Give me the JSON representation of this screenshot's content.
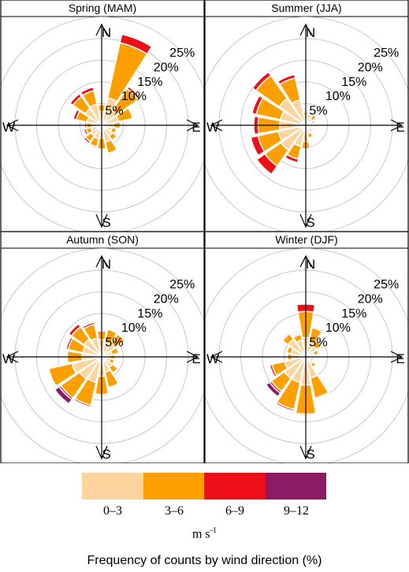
{
  "chart_data": {
    "type": "windrose",
    "axis_max": 25,
    "ring_labels": [
      "5%",
      "10%",
      "15%",
      "20%",
      "25%"
    ],
    "ring_values": [
      5,
      10,
      15,
      20,
      25
    ],
    "directions": [
      "N",
      "NNE",
      "NE",
      "ENE",
      "E",
      "ESE",
      "SE",
      "SSE",
      "S",
      "SSW",
      "SW",
      "WSW",
      "W",
      "WNW",
      "NW",
      "NNW"
    ],
    "cardinal_labels": {
      "N": "N",
      "E": "E",
      "S": "S",
      "W": "W"
    },
    "speed_bins": [
      {
        "label": "0–3",
        "color": "#fdd49e"
      },
      {
        "label": "3–6",
        "color": "#fe9f00"
      },
      {
        "label": "6–9",
        "color": "#ee0f18"
      },
      {
        "label": "9–12",
        "color": "#8a1c64"
      }
    ],
    "panels": [
      {
        "title": "Spring (MAM)",
        "segments": [
          [
            3.2,
            1.5,
            0,
            0
          ],
          [
            6.5,
            13.0,
            2.0,
            0
          ],
          [
            4.3,
            6.0,
            0.6,
            0
          ],
          [
            4.0,
            3.3,
            0,
            0
          ],
          [
            2.8,
            1.5,
            0,
            0
          ],
          [
            2.5,
            1.0,
            0,
            0
          ],
          [
            3.0,
            1.2,
            0,
            0
          ],
          [
            4.0,
            2.6,
            0,
            0
          ],
          [
            3.0,
            2.5,
            0,
            0
          ],
          [
            3.2,
            1.9,
            0.3,
            0
          ],
          [
            3.0,
            1.6,
            0.5,
            0
          ],
          [
            2.5,
            1.2,
            0.5,
            0
          ],
          [
            2.2,
            1.3,
            0.4,
            0
          ],
          [
            3.5,
            2.5,
            0.7,
            0
          ],
          [
            4.7,
            3.4,
            0.8,
            0
          ],
          [
            5.0,
            3.2,
            0.8,
            0
          ]
        ]
      },
      {
        "title": "Summer (JJA)",
        "segments": [
          [
            2.4,
            0.6,
            0,
            0
          ],
          [
            2.0,
            0.5,
            0,
            0
          ],
          [
            1.8,
            1.2,
            0,
            0
          ],
          [
            1.6,
            0.5,
            0,
            0
          ],
          [
            0.8,
            0.3,
            0,
            0
          ],
          [
            0.8,
            0.3,
            0,
            0
          ],
          [
            1.2,
            0.6,
            0,
            0
          ],
          [
            2.0,
            1.0,
            0,
            0
          ],
          [
            3.8,
            1.6,
            0,
            0
          ],
          [
            5.0,
            3.0,
            0.8,
            0
          ],
          [
            7.0,
            4.5,
            2.3,
            0
          ],
          [
            6.5,
            4.8,
            1.7,
            0
          ],
          [
            6.0,
            5.0,
            1.0,
            0
          ],
          [
            6.0,
            5.7,
            1.0,
            0
          ],
          [
            7.5,
            6.5,
            1.0,
            0
          ],
          [
            6.0,
            5.2,
            0.8,
            0
          ]
        ]
      },
      {
        "title": "Autumn (SON)",
        "segments": [
          [
            4.0,
            2.0,
            0,
            0
          ],
          [
            3.5,
            3.0,
            0,
            0
          ],
          [
            3.8,
            2.6,
            0,
            0
          ],
          [
            2.5,
            1.5,
            0,
            0
          ],
          [
            2.0,
            1.0,
            0,
            0
          ],
          [
            2.0,
            1.0,
            0,
            0
          ],
          [
            3.0,
            1.5,
            0,
            0
          ],
          [
            3.6,
            3.6,
            0,
            0
          ],
          [
            4.5,
            4.2,
            0.3,
            0
          ],
          [
            6.0,
            5.4,
            0.4,
            0
          ],
          [
            6.2,
            5.3,
            0.5,
            1.2
          ],
          [
            7.0,
            5.5,
            0,
            0
          ],
          [
            4.5,
            3.4,
            0,
            0
          ],
          [
            4.5,
            3.4,
            0.5,
            0
          ],
          [
            5.0,
            3.5,
            0.8,
            0
          ],
          [
            4.5,
            3.2,
            0.5,
            0
          ]
        ]
      },
      {
        "title": "Winter (DJF)",
        "segments": [
          [
            4.5,
            6.0,
            1.7,
            0
          ],
          [
            3.5,
            3.4,
            0.3,
            0
          ],
          [
            3.0,
            1.5,
            0.2,
            0
          ],
          [
            2.0,
            1.0,
            0,
            0
          ],
          [
            1.3,
            0.6,
            0,
            0
          ],
          [
            1.3,
            0.5,
            0,
            0
          ],
          [
            2.0,
            0.9,
            0,
            0
          ],
          [
            5.0,
            4.7,
            0.3,
            0
          ],
          [
            6.5,
            6.7,
            0.3,
            0
          ],
          [
            6.0,
            6.4,
            0.4,
            0
          ],
          [
            6.0,
            3.7,
            0.5,
            1.0
          ],
          [
            5.0,
            3.0,
            0.5,
            0
          ],
          [
            3.2,
            1.0,
            0,
            0
          ],
          [
            3.5,
            1.0,
            0,
            0
          ],
          [
            5.0,
            1.5,
            0.3,
            0
          ],
          [
            4.0,
            1.3,
            0.3,
            0
          ]
        ]
      }
    ]
  },
  "legend": {
    "bins": [
      "0–3",
      "3–6",
      "6–9",
      "9–12"
    ],
    "unit_base": "m s",
    "unit_exp": "-1"
  },
  "caption": "Frequency of counts by wind direction (%)"
}
